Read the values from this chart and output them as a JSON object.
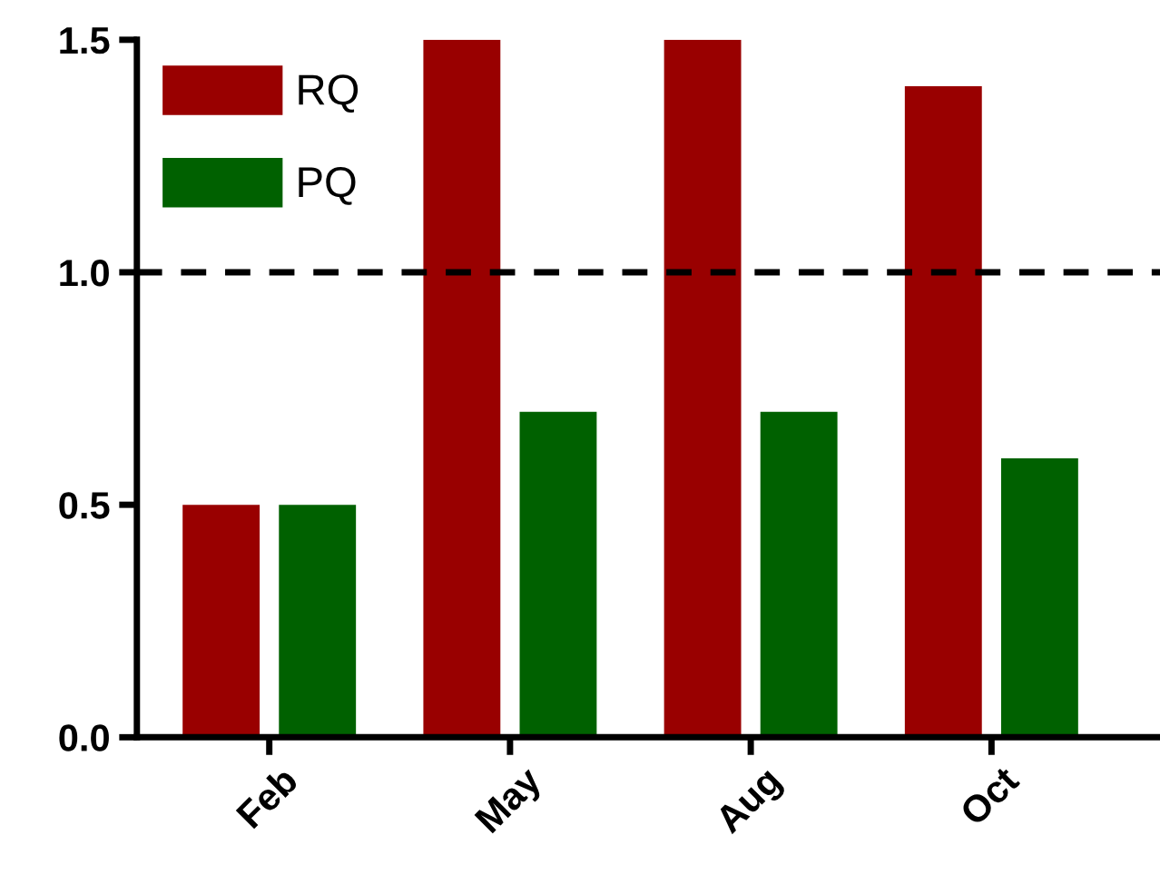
{
  "chart_data": {
    "type": "bar",
    "categories": [
      "Feb",
      "May",
      "Aug",
      "Oct"
    ],
    "series": [
      {
        "name": "RQ",
        "color": "#990000",
        "values": [
          0.5,
          1.5,
          1.5,
          1.4
        ]
      },
      {
        "name": "PQ",
        "color": "#006100",
        "values": [
          0.5,
          0.7,
          0.7,
          0.6
        ]
      }
    ],
    "ylim": [
      0,
      1.5
    ],
    "yticks": [
      {
        "value": 0,
        "label": "0.0"
      },
      {
        "value": 0.5,
        "label": "0.5"
      },
      {
        "value": 1.0,
        "label": "1.0"
      },
      {
        "value": 1.5,
        "label": "1.5"
      }
    ],
    "ref_lines": [
      {
        "axis": "y",
        "value": 1.0,
        "label": null,
        "color": "#000000",
        "line_style": "dashed"
      }
    ],
    "grid": false,
    "legend": "top left"
  }
}
